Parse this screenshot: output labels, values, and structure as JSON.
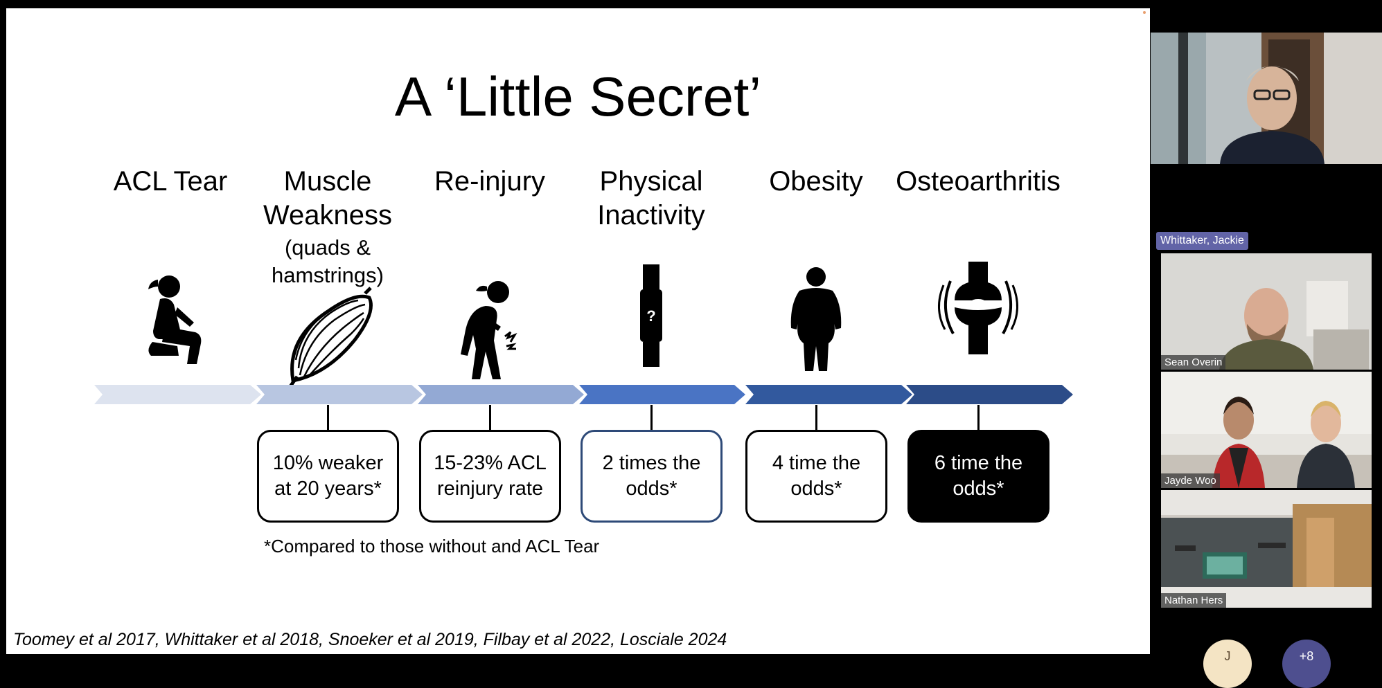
{
  "slide": {
    "title": "A ‘Little Secret’",
    "columns": [
      {
        "label": "ACL Tear",
        "sub": "",
        "icon": "kneeling-person-icon"
      },
      {
        "label": "Muscle Weakness",
        "sub": "(quads & hamstrings)",
        "icon": "muscle-icon"
      },
      {
        "label": "Re-injury",
        "sub": "",
        "icon": "injured-person-icon"
      },
      {
        "label": "Physical Inactivity",
        "sub": "",
        "icon": "fitness-tracker-icon"
      },
      {
        "label": "Obesity",
        "sub": "",
        "icon": "obese-person-icon"
      },
      {
        "label": "Osteoarthritis",
        "sub": "",
        "icon": "knee-joint-icon"
      }
    ],
    "tracker_glyph": "?",
    "stats": [
      {
        "text": "10% weaker at 20 years*"
      },
      {
        "text": "15-23% ACL reinjury rate"
      },
      {
        "text": "2 times the odds*"
      },
      {
        "text": "4 time the odds*"
      },
      {
        "text": "6 time the odds*"
      }
    ],
    "arrow_colors": [
      "#dde3ef",
      "#b8c6e1",
      "#93a9d4",
      "#4a74c4",
      "#32599e",
      "#2c4c88"
    ],
    "footnote": "*Compared to those without and ACL Tear",
    "references": "Toomey et al 2017, Whittaker et al 2018, Snoeker et al 2019, Filbay et al 2022, Losciale 2024"
  },
  "participants": {
    "active_speaker": "Whittaker, Jackie",
    "tiles": [
      {
        "name": "Sean Overin"
      },
      {
        "name": "Jayde Woo"
      },
      {
        "name": "Nathan Hers"
      }
    ]
  },
  "controls": {
    "more_badge": "+8",
    "avatar_initial": "J"
  },
  "colors": {
    "speaker_tag": "#6264a7",
    "box_border_blue": "#2e4a78"
  }
}
